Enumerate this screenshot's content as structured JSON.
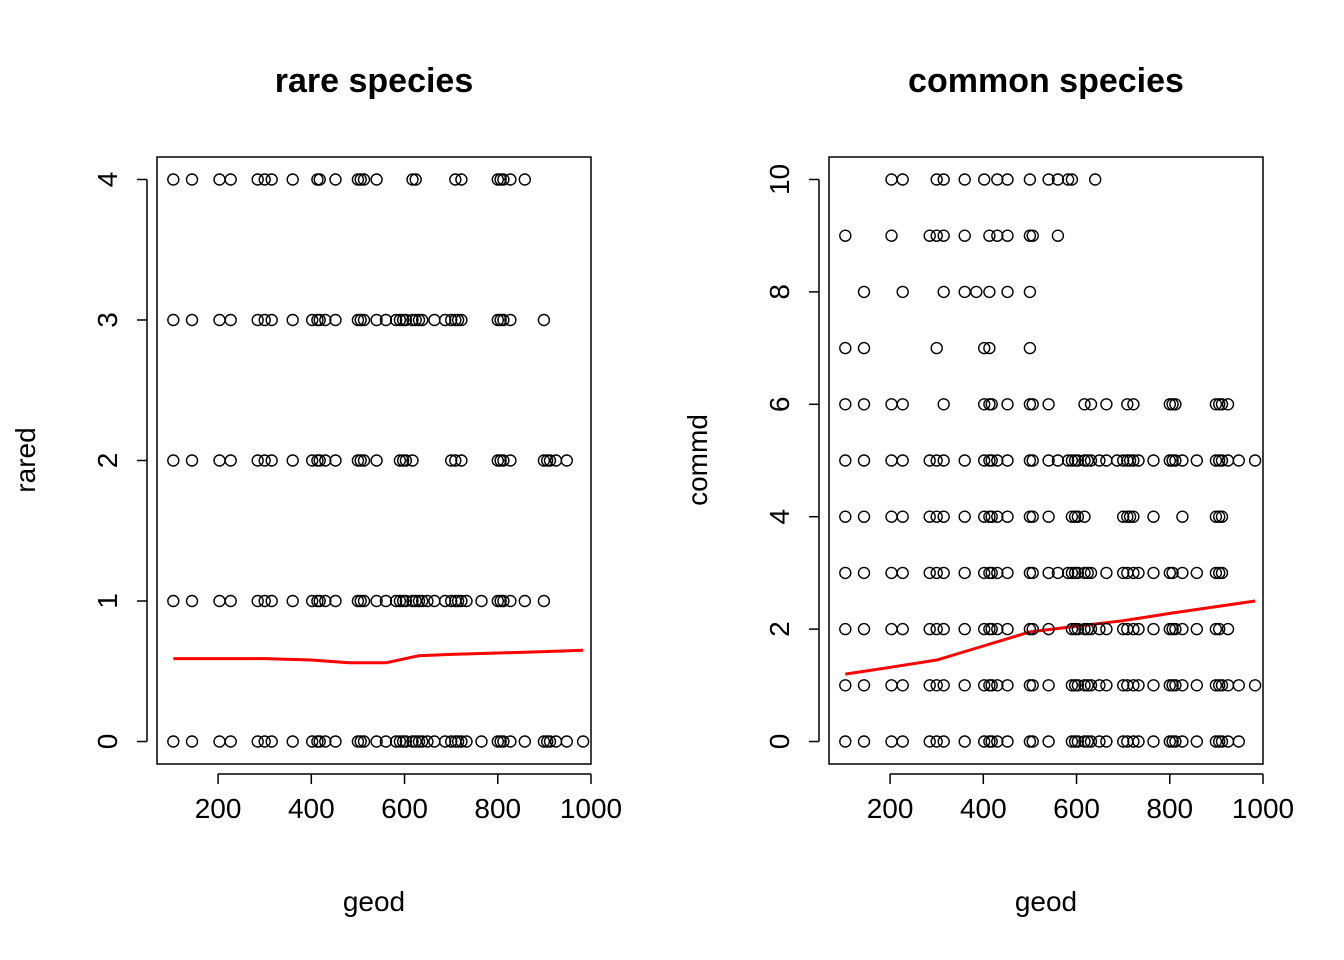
{
  "chart_data": [
    {
      "type": "scatter",
      "title": "rare species",
      "xlabel": "geod",
      "ylabel": "rared",
      "xlim": [
        69,
        1000
      ],
      "ylim": [
        -0.16,
        4.16
      ],
      "xticks": [
        "200",
        "400",
        "600",
        "800",
        "1000"
      ],
      "yticks": [
        "0",
        "1",
        "2",
        "3",
        "4"
      ],
      "grid": false,
      "legend": "none",
      "point_color": "#000000",
      "trend_color": "#ff0000",
      "points": {
        "y0": [
          104,
          144,
          203,
          227,
          285,
          300,
          315,
          360,
          402,
          413,
          418,
          430,
          452,
          500,
          506,
          513,
          540,
          560,
          582,
          590,
          597,
          603,
          617,
          624,
          631,
          638,
          649,
          664,
          687,
          700,
          709,
          715,
          722,
          733,
          765,
          800,
          806,
          812,
          827,
          858,
          899,
          906,
          912,
          925,
          948,
          983
        ],
        "y1": [
          104,
          144,
          203,
          227,
          285,
          300,
          315,
          360,
          402,
          413,
          418,
          430,
          452,
          500,
          506,
          513,
          540,
          560,
          582,
          590,
          597,
          603,
          617,
          624,
          631,
          638,
          649,
          664,
          687,
          700,
          709,
          715,
          722,
          733,
          765,
          800,
          806,
          812,
          827,
          858,
          899
        ],
        "y2": [
          104,
          144,
          203,
          227,
          285,
          300,
          315,
          360,
          402,
          413,
          418,
          430,
          452,
          500,
          506,
          513,
          540,
          590,
          597,
          603,
          617,
          700,
          709,
          722,
          800,
          806,
          812,
          827,
          899,
          906,
          912,
          925,
          948
        ],
        "y3": [
          104,
          144,
          203,
          227,
          285,
          300,
          315,
          360,
          402,
          413,
          418,
          430,
          452,
          500,
          506,
          513,
          540,
          560,
          582,
          590,
          597,
          603,
          617,
          624,
          631,
          638,
          664,
          687,
          700,
          709,
          715,
          722,
          800,
          806,
          812,
          827,
          899
        ],
        "y4": [
          104,
          144,
          203,
          227,
          285,
          300,
          315,
          360,
          413,
          418,
          452,
          500,
          506,
          513,
          540,
          617,
          624,
          709,
          722,
          800,
          806,
          812,
          827,
          858
        ]
      },
      "trend": {
        "x": [
          104,
          200,
          300,
          400,
          480,
          560,
          630,
          700,
          800,
          900,
          983
        ],
        "y": [
          0.59,
          0.59,
          0.59,
          0.58,
          0.56,
          0.56,
          0.61,
          0.62,
          0.63,
          0.64,
          0.65
        ]
      }
    },
    {
      "type": "scatter",
      "title": "common species",
      "xlabel": "geod",
      "ylabel": "commd",
      "xlim": [
        69,
        1000
      ],
      "ylim": [
        -0.4,
        10.4
      ],
      "xticks": [
        "200",
        "400",
        "600",
        "800",
        "1000"
      ],
      "yticks": [
        "0",
        "2",
        "4",
        "6",
        "8",
        "10"
      ],
      "grid": false,
      "legend": "none",
      "point_color": "#000000",
      "trend_color": "#ff0000",
      "points": {
        "y0": [
          104,
          144,
          203,
          227,
          285,
          300,
          315,
          360,
          402,
          413,
          418,
          430,
          452,
          500,
          506,
          540,
          590,
          597,
          603,
          617,
          624,
          631,
          649,
          664,
          700,
          709,
          722,
          733,
          765,
          800,
          806,
          812,
          827,
          858,
          899,
          906,
          912,
          925,
          948
        ],
        "y1": [
          104,
          144,
          203,
          227,
          285,
          300,
          315,
          360,
          402,
          413,
          418,
          430,
          452,
          500,
          506,
          540,
          590,
          597,
          603,
          617,
          624,
          631,
          649,
          664,
          700,
          709,
          722,
          733,
          765,
          800,
          806,
          812,
          827,
          858,
          899,
          906,
          912,
          925,
          948,
          983
        ],
        "y2": [
          104,
          144,
          203,
          227,
          285,
          300,
          315,
          360,
          402,
          413,
          418,
          430,
          452,
          500,
          506,
          540,
          590,
          597,
          603,
          617,
          624,
          631,
          649,
          664,
          700,
          709,
          722,
          733,
          765,
          800,
          806,
          812,
          827,
          858,
          899,
          906,
          925
        ],
        "y3": [
          104,
          144,
          203,
          227,
          285,
          300,
          315,
          360,
          402,
          413,
          418,
          430,
          452,
          500,
          506,
          540,
          560,
          582,
          590,
          597,
          603,
          617,
          624,
          631,
          664,
          700,
          709,
          722,
          733,
          765,
          800,
          806,
          827,
          858,
          899,
          906,
          912
        ],
        "y4": [
          104,
          144,
          203,
          227,
          285,
          300,
          315,
          360,
          402,
          413,
          418,
          430,
          452,
          500,
          506,
          540,
          590,
          597,
          603,
          617,
          700,
          709,
          715,
          722,
          765,
          827,
          899,
          906,
          912
        ],
        "y5": [
          104,
          144,
          203,
          227,
          285,
          300,
          315,
          360,
          402,
          413,
          418,
          430,
          452,
          500,
          506,
          540,
          560,
          582,
          590,
          597,
          603,
          617,
          624,
          631,
          649,
          664,
          687,
          700,
          709,
          715,
          722,
          733,
          765,
          800,
          806,
          812,
          827,
          858,
          899,
          906,
          912,
          925,
          948,
          983
        ],
        "y6": [
          104,
          144,
          203,
          227,
          315,
          402,
          413,
          418,
          452,
          500,
          506,
          540,
          617,
          631,
          664,
          709,
          722,
          800,
          806,
          812,
          899,
          906,
          912,
          925
        ],
        "y7": [
          104,
          144,
          300,
          402,
          413,
          500
        ],
        "y8": [
          144,
          227,
          315,
          360,
          385,
          413,
          452,
          500
        ],
        "y9": [
          104,
          203,
          285,
          300,
          315,
          360,
          413,
          430,
          452,
          500,
          506,
          560
        ],
        "y10": [
          203,
          227,
          300,
          315,
          360,
          402,
          430,
          452,
          500,
          540,
          560,
          582,
          590,
          640
        ]
      },
      "trend": {
        "x": [
          104,
          200,
          300,
          400,
          500,
          600,
          700,
          800,
          900,
          983
        ],
        "y": [
          1.2,
          1.32,
          1.45,
          1.7,
          1.95,
          2.05,
          2.15,
          2.28,
          2.4,
          2.5
        ]
      }
    }
  ]
}
